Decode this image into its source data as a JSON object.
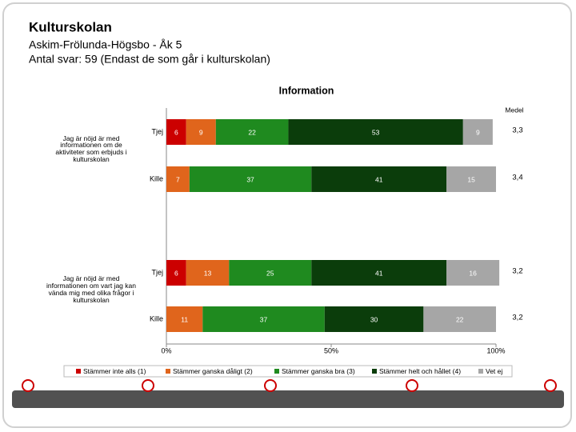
{
  "header": {
    "title": "Kulturskolan",
    "subtitle": "Askim-Frölunda-Högsbo - Åk 5",
    "note": "Antal svar: 59 (Endast de som går i kulturskolan)"
  },
  "chart_data": {
    "type": "stacked_barh",
    "title": "Information",
    "groups": [
      "Jag är nöjd är med informationen om de aktiviteter som erbjuds i kulturskolan",
      "Jag är nöjd är med informationen om vart jag kan vända mig med olika frågor i kulturskolan"
    ],
    "categories": [
      "Tjej",
      "Kille",
      "Tjej",
      "Kille"
    ],
    "series": [
      {
        "name": "Stämmer inte alls (1)",
        "color": "#cc0000",
        "values": [
          6,
          0,
          6,
          0
        ]
      },
      {
        "name": "Stämmer ganska dåligt (2)",
        "color": "#e0651c",
        "values": [
          9,
          7,
          13,
          11
        ]
      },
      {
        "name": "Stämmer ganska bra (3)",
        "color": "#1f8a1f",
        "values": [
          22,
          37,
          25,
          37
        ]
      },
      {
        "name": "Stämmer helt och hållet (4)",
        "color": "#0b3d0b",
        "values": [
          53,
          41,
          41,
          30
        ]
      },
      {
        "name": "Vet ej",
        "color": "#a6a6a6",
        "values": [
          9,
          15,
          16,
          22
        ]
      }
    ],
    "xlim": [
      0,
      100
    ],
    "xticks": [
      {
        "value": 0,
        "label": "0%"
      },
      {
        "value": 50,
        "label": "50%"
      },
      {
        "value": 100,
        "label": "100%"
      }
    ],
    "medel": {
      "label": "Medel",
      "values": [
        3.3,
        3.4,
        3.2,
        3.2
      ],
      "value_labels": [
        "3,3",
        "3,4",
        "3,2",
        "3,2"
      ]
    },
    "legend": "bottom"
  }
}
